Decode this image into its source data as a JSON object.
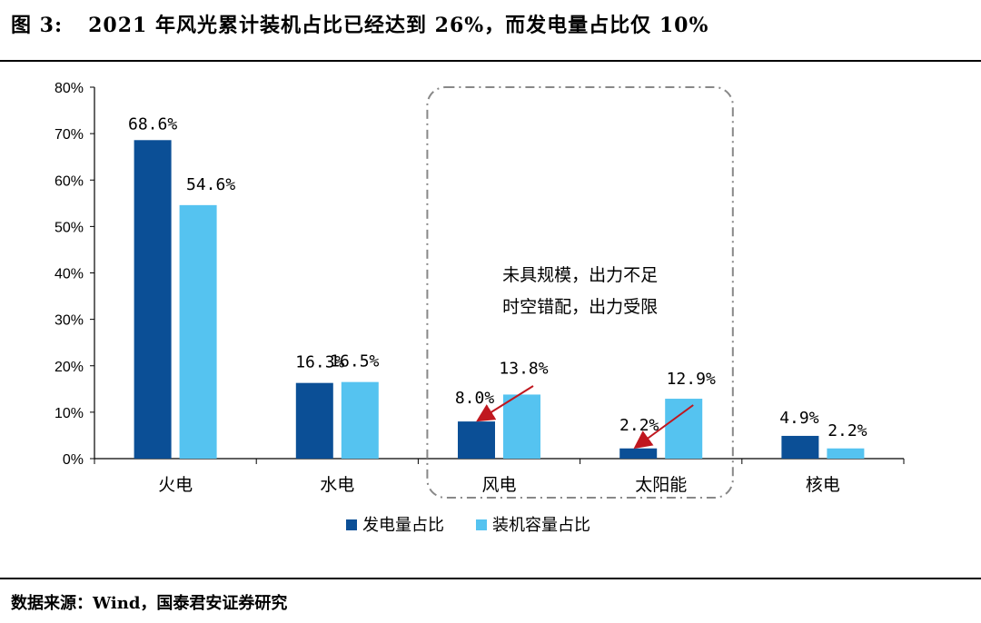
{
  "header": {
    "figure_no": "图 3:",
    "title": "2021 年风光累计装机占比已经达到 26%，而发电量占比仅 10%"
  },
  "footer": {
    "source": "数据来源：Wind，国泰君安证券研究"
  },
  "colors": {
    "generation": "#0b4f96",
    "capacity": "#55c3f0",
    "annotation_arrow": "#c0171f",
    "frame": "#888888"
  },
  "chart_data": {
    "type": "bar",
    "categories": [
      "火电",
      "水电",
      "风电",
      "太阳能",
      "核电"
    ],
    "series": [
      {
        "name": "发电量占比",
        "values": [
          68.6,
          16.3,
          8.0,
          2.2,
          4.9
        ],
        "labels": [
          "68.6%",
          "16.3%",
          "8.0%",
          "2.2%",
          "4.9%"
        ]
      },
      {
        "name": "装机容量占比",
        "values": [
          54.6,
          16.5,
          13.8,
          12.9,
          2.2
        ],
        "labels": [
          "54.6%",
          "16.5%",
          "13.8%",
          "12.9%",
          "2.2%"
        ]
      }
    ],
    "ylim": [
      0,
      80
    ],
    "yticks": [
      0,
      10,
      20,
      30,
      40,
      50,
      60,
      70,
      80
    ],
    "ytick_labels": [
      "0%",
      "10%",
      "20%",
      "30%",
      "40%",
      "50%",
      "60%",
      "70%",
      "80%"
    ],
    "annotation": {
      "lines": [
        "未具规模，出力不足",
        "时空错配，出力受限"
      ],
      "categories": [
        "风电",
        "太阳能"
      ]
    },
    "legend_position": "bottom"
  }
}
